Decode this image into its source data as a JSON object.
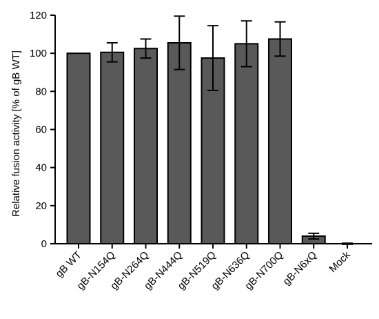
{
  "chart_data": {
    "type": "bar",
    "title": "",
    "xlabel": "",
    "ylabel": "Relative fusion activity [% of gB WT]",
    "ylim": [
      0,
      120
    ],
    "yticks": [
      0,
      20,
      40,
      60,
      80,
      100,
      120
    ],
    "categories": [
      "gB WT",
      "gB-N154Q",
      "gB-N264Q",
      "gB-N444Q",
      "gB-N519Q",
      "gB-N636Q",
      "gB-N700Q",
      "gB-N6xQ",
      "Mock"
    ],
    "values": [
      100,
      100.5,
      102.5,
      105.5,
      97.5,
      105,
      107.5,
      4,
      0
    ],
    "error": [
      0,
      5,
      5,
      14,
      17,
      12,
      9,
      1.5,
      0.3
    ],
    "bar_color": "#595959",
    "grid": false,
    "legend": "none"
  }
}
